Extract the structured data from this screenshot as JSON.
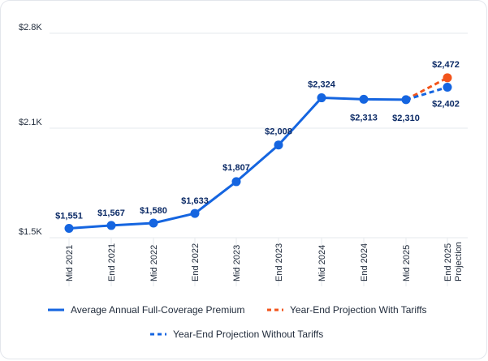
{
  "chart_data": {
    "type": "line",
    "title": "",
    "xlabel": "",
    "ylabel": "",
    "y_tick_labels": [
      "$2.8K",
      "$2.1K",
      "$1.5K"
    ],
    "y_ticks": [
      2800,
      2100,
      1500
    ],
    "ylim": [
      1500,
      2800
    ],
    "grid": true,
    "legend_position": "bottom",
    "categories": [
      "Mid 2021",
      "End 2021",
      "Mid 2022",
      "End 2022",
      "Mid 2023",
      "End 2023",
      "Mid 2024",
      "End 2024",
      "Mid 2025",
      "End 2025 Projection"
    ],
    "series": [
      {
        "name": "Average Annual Full-Coverage Premium",
        "style": "solid",
        "color": "#1565e0",
        "values": [
          1551,
          1567,
          1580,
          1633,
          1807,
          2008,
          2324,
          2313,
          2310,
          null
        ],
        "labels": [
          "$1,551",
          "$1,567",
          "$1,580",
          "$1,633",
          "$1,807",
          "$2,008",
          "$2,324",
          "$2,313",
          "$2,310",
          ""
        ]
      },
      {
        "name": "Year-End Projection With Tariffs",
        "style": "dashed",
        "color": "#f2541b",
        "values": [
          null,
          null,
          null,
          null,
          null,
          null,
          null,
          null,
          2310,
          2472
        ],
        "labels": [
          "",
          "",
          "",
          "",
          "",
          "",
          "",
          "",
          "",
          "$2,472"
        ]
      },
      {
        "name": "Year-End Projection Without Tariffs",
        "style": "dashed",
        "color": "#1565e0",
        "values": [
          null,
          null,
          null,
          null,
          null,
          null,
          null,
          null,
          2310,
          2402
        ],
        "labels": [
          "",
          "",
          "",
          "",
          "",
          "",
          "",
          "",
          "",
          "$2,402"
        ]
      }
    ]
  }
}
